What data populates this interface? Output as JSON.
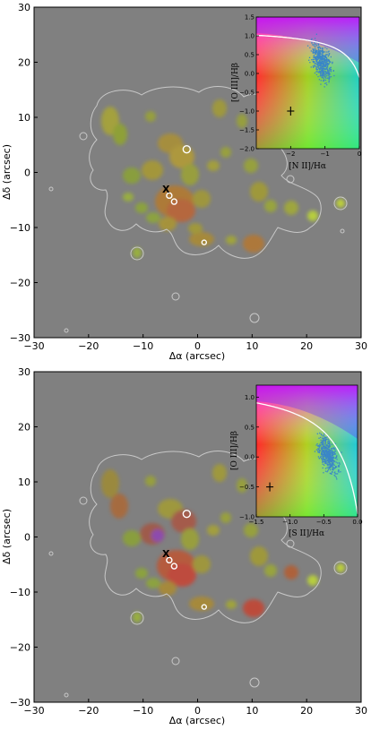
{
  "chart_data": [
    {
      "type": "scatter",
      "panel": "top",
      "xlabel": "Δα (arcsec)",
      "ylabel": "Δδ (arcsec)",
      "xlim": [
        -30,
        30
      ],
      "ylim": [
        -30,
        30
      ],
      "xticks": [
        "−30",
        "−20",
        "−10",
        "0",
        "10",
        "20",
        "30"
      ],
      "yticks": [
        "30",
        "20",
        "10",
        "0",
        "−10",
        "−20",
        "−30"
      ],
      "marker": "X",
      "marker_pos": [
        -5.8,
        -3.2
      ],
      "circles": [
        [
          -2,
          4.2
        ],
        [
          -5.2,
          -4.2
        ],
        [
          -4.3,
          -5.3
        ],
        [
          1.2,
          -12.7
        ]
      ],
      "inset": {
        "type": "scatter",
        "xlabel": "[N II]/Hα",
        "ylabel": "[O III]/Hβ",
        "xlim": [
          -3,
          0
        ],
        "ylim": [
          -2,
          1.5
        ],
        "xticks": [
          "−2",
          "−1",
          "0"
        ],
        "yticks": [
          "1.5",
          "1.0",
          "0.5",
          "0.0",
          "−0.5",
          "−1.0",
          "−1.5",
          "−2.0"
        ],
        "cloud_center": [
          -1.1,
          0.3
        ],
        "cross": [
          -2.0,
          -1.0
        ],
        "curve": "Kewley extreme starburst line",
        "colors": {
          "points": "#3a86c8",
          "curve": "#ffffff"
        }
      }
    },
    {
      "type": "scatter",
      "panel": "bottom",
      "xlabel": "Δα (arcsec)",
      "ylabel": "Δδ (arcsec)",
      "xlim": [
        -30,
        30
      ],
      "ylim": [
        -30,
        30
      ],
      "xticks": [
        "−30",
        "−20",
        "−10",
        "0",
        "10",
        "20",
        "30"
      ],
      "yticks": [
        "30",
        "20",
        "10",
        "0",
        "−10",
        "−20",
        "−30"
      ],
      "marker": "X",
      "marker_pos": [
        -5.8,
        -3.2
      ],
      "circles": [
        [
          -2,
          4.2
        ],
        [
          -5.2,
          -4.2
        ],
        [
          -4.3,
          -5.3
        ],
        [
          1.2,
          -12.7
        ]
      ],
      "inset": {
        "type": "scatter",
        "xlabel": "[S II]/Hα",
        "ylabel": "[O III]/Hβ",
        "xlim": [
          -1.5,
          0
        ],
        "ylim": [
          -1,
          1.2
        ],
        "xticks": [
          "−1.5",
          "−1.0",
          "−0.5",
          "0.0"
        ],
        "yticks": [
          "1.0",
          "0.5",
          "0.0",
          "−0.5",
          "−1.0"
        ],
        "cloud_center": [
          -0.45,
          0.05
        ],
        "cross": [
          -1.3,
          -0.5
        ],
        "curve": "Kewley extreme starburst line",
        "colors": {
          "points": "#3a86c8",
          "curve": "#ffffff"
        }
      }
    }
  ],
  "style": {
    "background": "#808080",
    "contour": "#c8c8c8",
    "marker_color": "#000000"
  }
}
